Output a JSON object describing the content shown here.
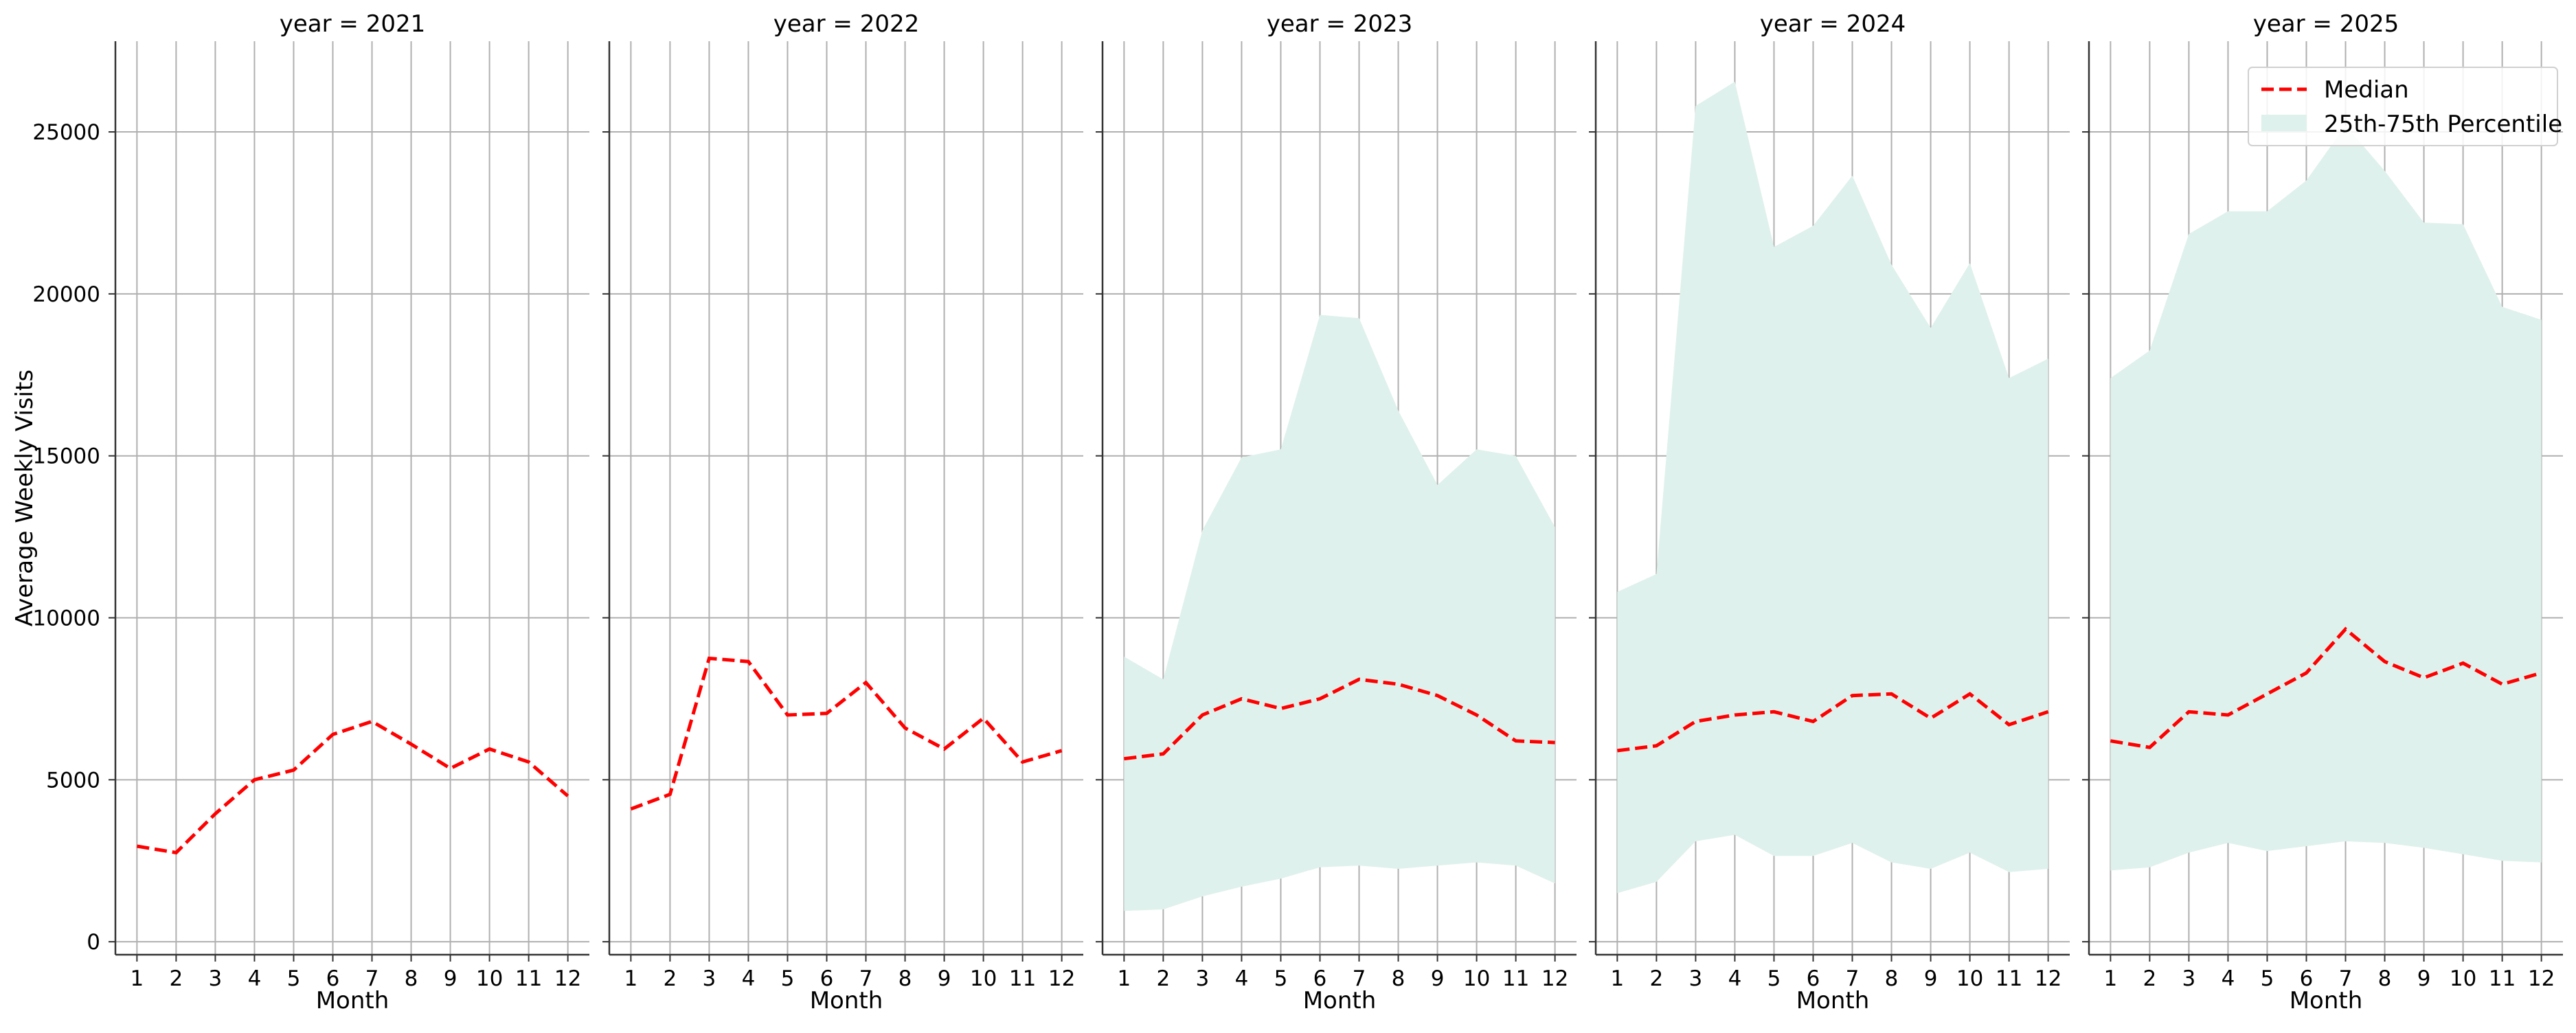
{
  "chart_data": {
    "type": "line",
    "ylabel": "Average Weekly Visits",
    "xlabel": "Month",
    "ylim": [
      -400,
      27800
    ],
    "xlim": [
      0.45,
      12.55
    ],
    "yticks": [
      0,
      5000,
      10000,
      15000,
      20000,
      25000
    ],
    "xticks": [
      1,
      2,
      3,
      4,
      5,
      6,
      7,
      8,
      9,
      10,
      11,
      12
    ],
    "grid": true,
    "legend_placement": "top-right",
    "colors": {
      "median": "#ff0000",
      "band": "#dff1ec",
      "grid": "#b0b0b0"
    },
    "legend": [
      {
        "key": "median",
        "label": "Median"
      },
      {
        "key": "band",
        "label": "25th-75th Percentile"
      }
    ],
    "panels": [
      {
        "title": "year = 2021",
        "median": [
          2950,
          2750,
          3950,
          5000,
          5300,
          6400,
          6800,
          6100,
          5350,
          5950,
          5550,
          4500
        ],
        "p25": null,
        "p75": null
      },
      {
        "title": "year = 2022",
        "median": [
          4100,
          4550,
          8750,
          8650,
          7000,
          7050,
          8000,
          6600,
          5950,
          6900,
          5550,
          5900
        ],
        "p25": null,
        "p75": null
      },
      {
        "title": "year = 2023",
        "median": [
          5650,
          5800,
          7000,
          7500,
          7200,
          7500,
          8100,
          7950,
          7600,
          7000,
          6200,
          6150
        ],
        "p25": [
          950,
          1000,
          1400,
          1700,
          1950,
          2300,
          2350,
          2250,
          2350,
          2450,
          2350,
          1800
        ],
        "p75": [
          8800,
          8100,
          12700,
          14950,
          15200,
          19350,
          19250,
          16400,
          14100,
          15200,
          15000,
          12800
        ]
      },
      {
        "title": "year = 2024",
        "median": [
          5900,
          6050,
          6800,
          7000,
          7100,
          6800,
          7600,
          7650,
          6900,
          7650,
          6700,
          7100
        ],
        "p25": [
          1500,
          1850,
          3100,
          3300,
          2650,
          2650,
          3050,
          2450,
          2250,
          2750,
          2150,
          2250
        ],
        "p75": [
          10800,
          11350,
          25800,
          26550,
          21450,
          22100,
          23650,
          20900,
          18950,
          20950,
          17400,
          18000
        ]
      },
      {
        "title": "year = 2025",
        "median": [
          6200,
          6000,
          7100,
          7000,
          7650,
          8300,
          9650,
          8650,
          8150,
          8600,
          7950,
          8300
        ],
        "p25": [
          2200,
          2300,
          2750,
          3050,
          2800,
          2950,
          3100,
          3050,
          2900,
          2700,
          2500,
          2450
        ],
        "p75": [
          17400,
          18250,
          21850,
          22550,
          22550,
          23500,
          25200,
          23800,
          22200,
          22150,
          19600,
          19200
        ]
      }
    ]
  }
}
